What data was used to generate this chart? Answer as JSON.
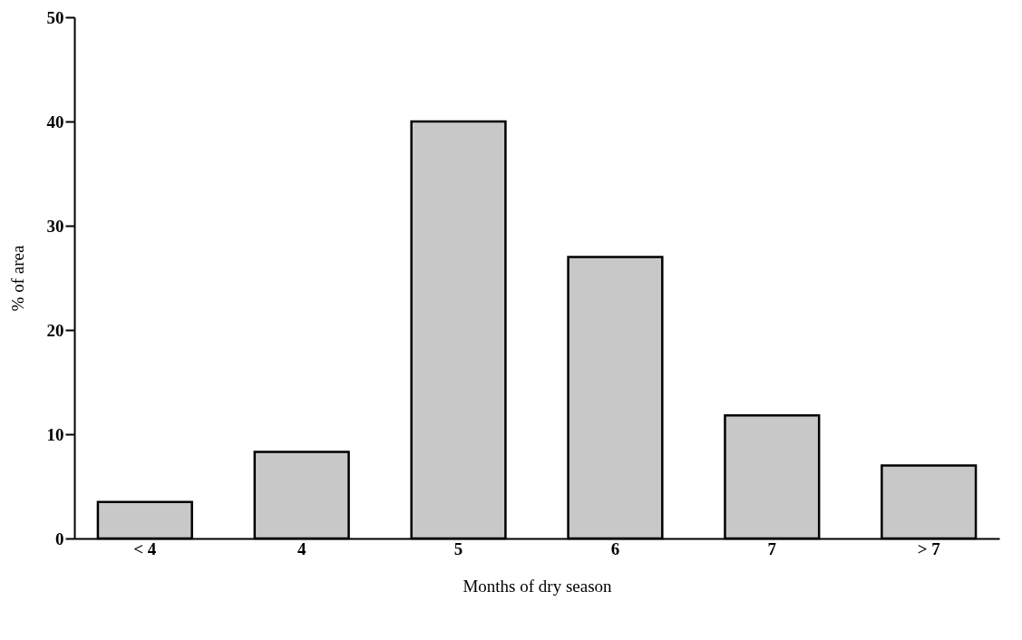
{
  "chart_data": {
    "type": "bar",
    "xlabel": "Months of dry season",
    "ylabel": "% of area",
    "categories": [
      "< 4",
      "4",
      "5",
      "6",
      "7",
      "> 7"
    ],
    "values": [
      3.5,
      8.3,
      40,
      27,
      11.8,
      7
    ],
    "color": "#c8c8c8",
    "ylim": [
      0,
      50
    ],
    "yticks": [
      0,
      10,
      20,
      30,
      40,
      50
    ],
    "grid": false
  }
}
